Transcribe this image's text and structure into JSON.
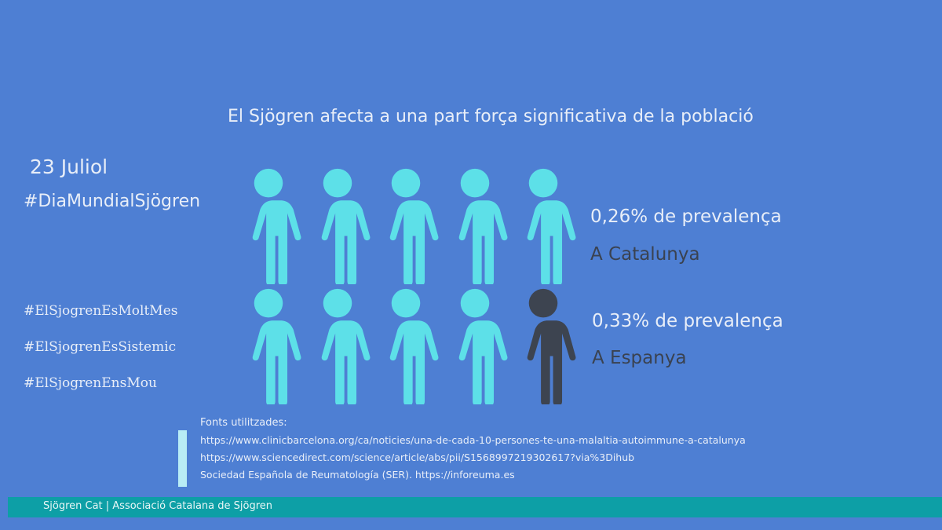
{
  "headline": "El Sjögren afecta a una part força significativa de la població",
  "date": "23 Juliol",
  "main_hashtag": "#DiaMundialSjögren",
  "hashtags": [
    "#ElSjogrenEsMoltMes",
    "#ElSjogrenEsSistemic",
    "#ElSjogrenEnsMou"
  ],
  "stats": [
    {
      "value": "0,26% de prevalença",
      "place": "A Catalunya"
    },
    {
      "value": "0,33% de prevalença",
      "place": "A Espanya"
    }
  ],
  "pictogram": {
    "rows": 2,
    "per_row": 5,
    "highlighted_count": 1,
    "colors": {
      "default": "#5de0e8",
      "highlight": "#3d4450"
    }
  },
  "sources": {
    "title": "Fonts utilitzades:",
    "lines": [
      "https://www.clinicbarcelona.org/ca/noticies/una-de-cada-10-persones-te-una-malaltia-autoimmune-a-catalunya",
      "https://www.sciencedirect.com/science/article/abs/pii/S1568997219302617?via%3Dihub",
      "Sociedad Española de Reumatología (SER). https://inforeuma.es"
    ]
  },
  "footer": "Sjögren Cat | Associació Catalana de Sjögren",
  "colors": {
    "background": "#4e7fd3",
    "footer": "#0d9fa6",
    "source_bar": "#b8ecf5"
  }
}
